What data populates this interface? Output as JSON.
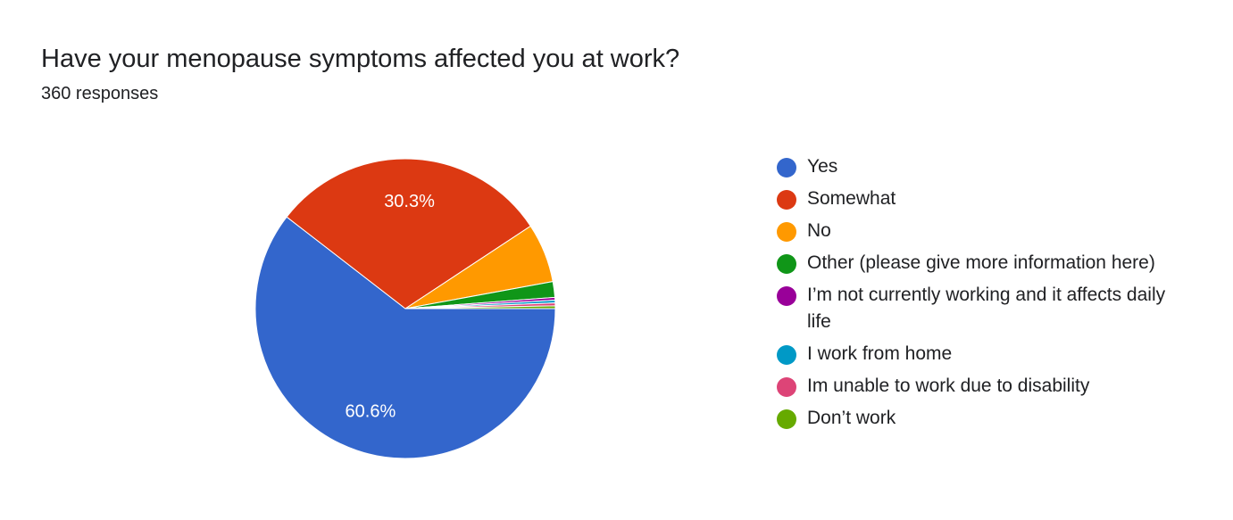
{
  "question": {
    "title": "Have your menopause symptoms affected you at work?",
    "responses": "360 responses"
  },
  "chart_data": {
    "type": "pie",
    "total": 360,
    "slices": [
      {
        "label": "Yes",
        "percent": 60.6,
        "color": "#3366cc",
        "show_label": true
      },
      {
        "label": "Somewhat",
        "percent": 30.3,
        "color": "#dc3912",
        "show_label": true
      },
      {
        "label": "No",
        "percent": 6.4,
        "color": "#ff9900",
        "show_label": false
      },
      {
        "label": "Other (please give more information here)",
        "percent": 1.7,
        "color": "#109618",
        "show_label": false
      },
      {
        "label": "I’m not currently working and it affects daily life",
        "percent": 0.3,
        "color": "#990099",
        "show_label": false
      },
      {
        "label": "I work from home",
        "percent": 0.3,
        "color": "#0099c6",
        "show_label": false
      },
      {
        "label": "Im unable to work due to disability",
        "percent": 0.3,
        "color": "#dd4477",
        "show_label": false
      },
      {
        "label": "Don’t work",
        "percent": 0.3,
        "color": "#66aa00",
        "show_label": false
      }
    ],
    "legend_position": "right"
  }
}
